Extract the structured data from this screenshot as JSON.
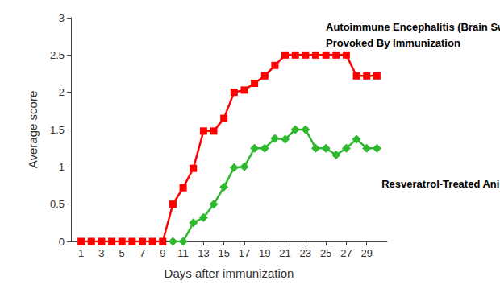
{
  "chart_data": {
    "type": "line",
    "x_label": "Days after immunization",
    "y_label": "Average score",
    "annotations": [
      "Autoimmune Encephalitis (Brain Swelling)",
      "Provoked By Immunization",
      "Resveratrol-Treated Animal"
    ],
    "x": [
      1,
      2,
      3,
      4,
      5,
      6,
      7,
      8,
      9,
      10,
      11,
      12,
      13,
      14,
      15,
      16,
      17,
      18,
      19,
      20,
      21,
      22,
      23,
      24,
      25,
      26,
      27,
      28,
      29,
      30
    ],
    "series": [
      {
        "color": "#ff0000",
        "marker": "square",
        "line_style": "solid",
        "values": [
          0,
          0,
          0,
          0,
          0,
          0,
          0,
          0,
          0,
          0.5,
          0.72,
          0.98,
          1.48,
          1.48,
          1.65,
          2.0,
          2.03,
          2.12,
          2.22,
          2.36,
          2.5,
          2.5,
          2.5,
          2.5,
          2.5,
          2.5,
          2.5,
          2.22,
          2.22,
          2.22
        ]
      },
      {
        "color": "#2db82d",
        "marker": "diamond",
        "line_style": "solid",
        "values": [
          null,
          null,
          null,
          null,
          null,
          null,
          null,
          null,
          null,
          0,
          0,
          0.25,
          0.32,
          0.5,
          0.73,
          0.99,
          1.0,
          1.25,
          1.25,
          1.38,
          1.37,
          1.5,
          1.5,
          1.25,
          1.25,
          1.16,
          1.25,
          1.37,
          1.25,
          1.25
        ]
      }
    ],
    "xlim": [
      0,
      31
    ],
    "xticks": [
      1,
      3,
      5,
      7,
      9,
      11,
      13,
      15,
      17,
      19,
      21,
      23,
      25,
      27,
      29
    ],
    "ylim": [
      0,
      3
    ],
    "yticks": [
      0,
      0.5,
      1,
      1.5,
      2,
      2.5,
      3
    ],
    "grid": false
  }
}
